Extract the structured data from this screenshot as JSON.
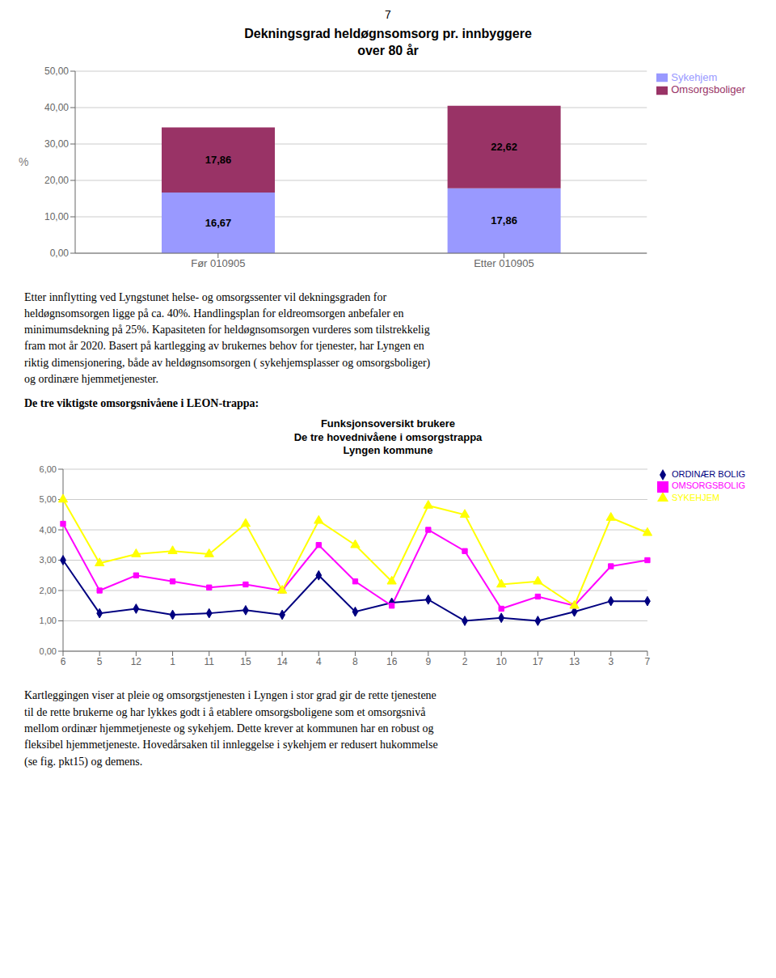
{
  "chart_data": [
    {
      "type": "bar",
      "stacked": true,
      "title": "Dekningsgrad heldøgnsomsorg pr. innbyggere\nover 80 år",
      "ylabel": "%",
      "categories": [
        "Før 010905",
        "Etter 010905"
      ],
      "series": [
        {
          "name": "Sykehjem",
          "color": "#9999FF",
          "values": [
            16.67,
            17.86
          ],
          "value_labels": [
            "16,67",
            "17,86"
          ]
        },
        {
          "name": "Omsorgsboliger",
          "color": "#993366",
          "values": [
            17.86,
            22.62
          ],
          "value_labels": [
            "17,86",
            "22,62"
          ]
        }
      ],
      "ylim": [
        0,
        50
      ],
      "yticks": [
        {
          "value": 0,
          "label": "0,00"
        },
        {
          "value": 10,
          "label": "10,00"
        },
        {
          "value": 20,
          "label": "20,00"
        },
        {
          "value": 30,
          "label": "30,00"
        },
        {
          "value": 40,
          "label": "40,00"
        },
        {
          "value": 50,
          "label": "50,00"
        }
      ],
      "data_labels": true,
      "grid": true,
      "legend": "upper right",
      "annotations": [
        "7",
        "Etter innflytting ved Lyngstunet helse- og omsorgssenter vil dekningsgraden for\nheldøgnsomsorgen ligge på ca. 40%. Handlingsplan for eldreomsorgen anbefaler en\nminimumsdekning på 25%. Kapasiteten for heldøgnsomsorgen vurderes som tilstrekkelig\nfram mot år 2020. Basert på kartlegging av brukernes behov for tjenester, har Lyngen en\nriktig dimensjonering, både av heldøgnsomsorgen ( sykehjemsplasser og omsorgsboliger)\nog ordinære hjemmetjenester."
      ]
    },
    {
      "type": "line",
      "title": "Funksjonsoversikt brukere\nDe tre hovednivåene i omsorgstrappa\nLyngen kommune",
      "categories": [
        "6",
        "5",
        "12",
        "1",
        "11",
        "15",
        "14",
        "4",
        "8",
        "16",
        "9",
        "2",
        "10",
        "17",
        "13",
        "3",
        "7"
      ],
      "series": [
        {
          "name": "ORDINÆR BOLIG",
          "color": "#000080",
          "marker": "diamond",
          "values": [
            3.0,
            1.25,
            1.4,
            1.2,
            1.25,
            1.35,
            1.2,
            2.5,
            1.3,
            1.6,
            1.7,
            1.0,
            1.1,
            1.0,
            1.3,
            1.65,
            1.65
          ]
        },
        {
          "name": "OMSORGSBOLIG",
          "color": "#FF00FF",
          "marker": "square",
          "values": [
            4.2,
            2.0,
            2.5,
            2.3,
            2.1,
            2.2,
            2.0,
            3.5,
            2.3,
            1.5,
            4.0,
            3.3,
            1.4,
            1.8,
            1.5,
            2.8,
            3.0
          ]
        },
        {
          "name": "SYKEHJEM",
          "color": "#FFFF00",
          "marker": "triangle",
          "values": [
            5.0,
            2.9,
            3.2,
            3.3,
            3.2,
            4.2,
            2.0,
            4.3,
            3.5,
            2.3,
            4.8,
            4.5,
            2.2,
            2.3,
            1.5,
            4.4,
            3.9
          ]
        }
      ],
      "ylim": [
        0,
        6
      ],
      "yticks": [
        {
          "value": 0,
          "label": "0,00"
        },
        {
          "value": 1,
          "label": "1,00"
        },
        {
          "value": 2,
          "label": "2,00"
        },
        {
          "value": 3,
          "label": "3,00"
        },
        {
          "value": 4,
          "label": "4,00"
        },
        {
          "value": 5,
          "label": "5,00"
        },
        {
          "value": 6,
          "label": "6,00"
        }
      ],
      "grid": true,
      "legend": "upper right",
      "annotations": [
        "De tre viktigste omsorgsnivåene i LEON-trappa:",
        "Kartleggingen viser at pleie og omsorgstjenesten i Lyngen i stor grad gir de rette tjenestene\ntil de rette brukerne og har lykkes godt i å etablere omsorgsboligene som et omsorgsnivå\nmellom ordinær hjemmetjeneste og sykehjem. Dette krever at kommunen har en robust og\nfleksibel hjemmetjeneste. Hovedårsaken til innleggelse i sykehjem er redusert hukommelse\n(se fig. pkt15) og demens."
      ]
    }
  ]
}
